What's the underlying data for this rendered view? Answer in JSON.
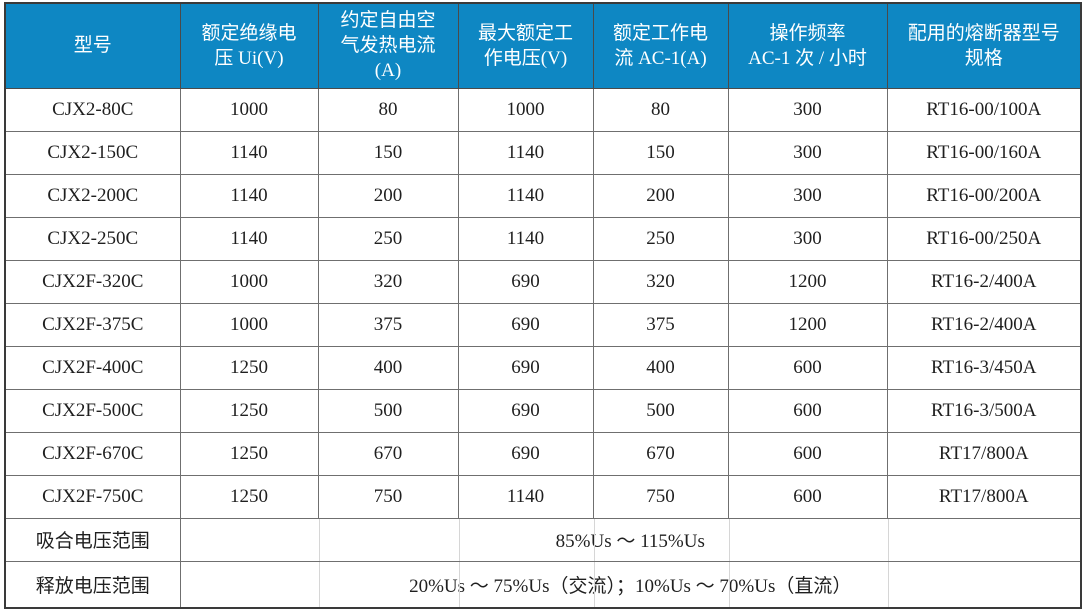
{
  "table": {
    "title": "CJX2 / CJX2F contactor specifications",
    "header_bg": "#0e87c3",
    "header_text_color": "#ffffff",
    "columns": [
      {
        "id": "model",
        "lines": [
          "型号"
        ]
      },
      {
        "id": "rated-insulation-voltage",
        "lines": [
          "额定绝缘电",
          "压 Ui(V)"
        ]
      },
      {
        "id": "free-air-thermal-current",
        "lines": [
          "约定自由空",
          "气发热电流",
          "(A)"
        ]
      },
      {
        "id": "max-rated-working-voltage",
        "lines": [
          "最大额定工",
          "作电压(V)"
        ]
      },
      {
        "id": "rated-working-current-ac1",
        "lines": [
          "额定工作电",
          "流 AC-1(A)"
        ]
      },
      {
        "id": "operating-frequency",
        "lines": [
          "操作频率",
          "AC-1 次 / 小时"
        ]
      },
      {
        "id": "matching-fuse-spec",
        "lines": [
          "配用的熔断器型号",
          "规格"
        ]
      }
    ],
    "rows": [
      [
        "CJX2-80C",
        "1000",
        "80",
        "1000",
        "80",
        "300",
        "RT16-00/100A"
      ],
      [
        "CJX2-150C",
        "1140",
        "150",
        "1140",
        "150",
        "300",
        "RT16-00/160A"
      ],
      [
        "CJX2-200C",
        "1140",
        "200",
        "1140",
        "200",
        "300",
        "RT16-00/200A"
      ],
      [
        "CJX2-250C",
        "1140",
        "250",
        "1140",
        "250",
        "300",
        "RT16-00/250A"
      ],
      [
        "CJX2F-320C",
        "1000",
        "320",
        "690",
        "320",
        "1200",
        "RT16-2/400A"
      ],
      [
        "CJX2F-375C",
        "1000",
        "375",
        "690",
        "375",
        "1200",
        "RT16-2/400A"
      ],
      [
        "CJX2F-400C",
        "1250",
        "400",
        "690",
        "400",
        "600",
        "RT16-3/450A"
      ],
      [
        "CJX2F-500C",
        "1250",
        "500",
        "690",
        "500",
        "600",
        "RT16-3/500A"
      ],
      [
        "CJX2F-670C",
        "1250",
        "670",
        "690",
        "670",
        "600",
        "RT17/800A"
      ],
      [
        "CJX2F-750C",
        "1250",
        "750",
        "1140",
        "750",
        "600",
        "RT17/800A"
      ]
    ],
    "footer_rows": [
      {
        "label": "吸合电压范围",
        "value": "85%Us ～ 115%Us"
      },
      {
        "label": "释放电压范围",
        "value": "20%Us ～ 75%Us（交流）；10%Us ～ 70%Us（直流）"
      }
    ]
  }
}
